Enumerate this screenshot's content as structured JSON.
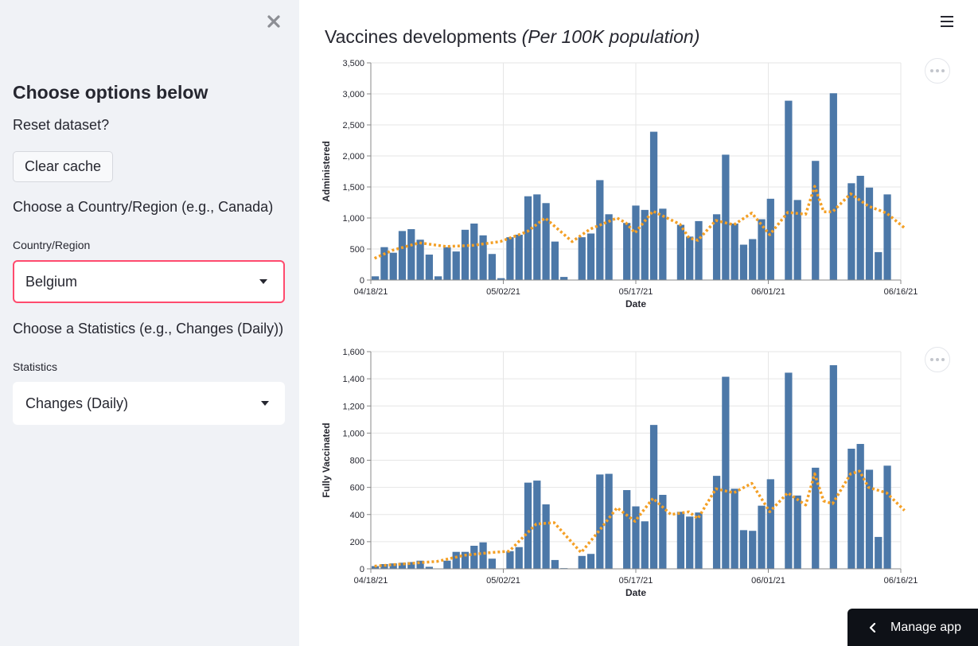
{
  "sidebar": {
    "heading": "Choose options below",
    "reset_text": "Reset dataset?",
    "clear_cache_label": "Clear cache",
    "country_prompt": "Choose a Country/Region (e.g., Canada)",
    "country_label": "Country/Region",
    "country_value": "Belgium",
    "stat_prompt": "Choose a Statistics (e.g., Changes (Daily))",
    "stat_label": "Statistics",
    "stat_value": "Changes (Daily)"
  },
  "main": {
    "title": "Vaccines developments",
    "title_sub": "(Per 100K population)",
    "manage_app_label": "Manage app"
  },
  "colors": {
    "bar": "#4c78a8",
    "avg_line": "#f4a026",
    "focus_border": "#ff4b6e",
    "sidebar_bg": "#f0f2f6"
  },
  "chart_data": [
    {
      "type": "bar",
      "xlabel": "Date",
      "ylabel": "Administered",
      "ylim": [
        0,
        3500
      ],
      "yticks": [
        0,
        500,
        1000,
        1500,
        2000,
        2500,
        3000,
        3500
      ],
      "ytick_labels": [
        "0",
        "500",
        "1,000",
        "1,500",
        "2,000",
        "2,500",
        "3,000",
        "3,500"
      ],
      "xlim": [
        "2021-04-18",
        "2021-06-16"
      ],
      "xticks": [
        "04/18/21",
        "05/02/21",
        "05/17/21",
        "06/01/21",
        "06/16/21"
      ],
      "grid": true,
      "series": [
        {
          "values": [
            [
              "2021-04-18",
              60
            ],
            [
              "2021-04-19",
              530
            ],
            [
              "2021-04-20",
              440
            ],
            [
              "2021-04-21",
              790
            ],
            [
              "2021-04-22",
              820
            ],
            [
              "2021-04-23",
              650
            ],
            [
              "2021-04-24",
              410
            ],
            [
              "2021-04-25",
              60
            ],
            [
              "2021-04-26",
              530
            ],
            [
              "2021-04-27",
              460
            ],
            [
              "2021-04-28",
              810
            ],
            [
              "2021-04-29",
              910
            ],
            [
              "2021-04-30",
              720
            ],
            [
              "2021-05-01",
              420
            ],
            [
              "2021-05-02",
              30
            ],
            [
              "2021-05-03",
              690
            ],
            [
              "2021-05-04",
              730
            ],
            [
              "2021-05-05",
              1350
            ],
            [
              "2021-05-06",
              1380
            ],
            [
              "2021-05-07",
              1240
            ],
            [
              "2021-05-08",
              620
            ],
            [
              "2021-05-09",
              50
            ],
            [
              "2021-05-11",
              690
            ],
            [
              "2021-05-12",
              750
            ],
            [
              "2021-05-13",
              1610
            ],
            [
              "2021-05-14",
              1060
            ],
            [
              "2021-05-16",
              920
            ],
            [
              "2021-05-17",
              1200
            ],
            [
              "2021-05-18",
              1130
            ],
            [
              "2021-05-19",
              2390
            ],
            [
              "2021-05-20",
              1150
            ],
            [
              "2021-05-22",
              890
            ],
            [
              "2021-05-23",
              700
            ],
            [
              "2021-05-24",
              950
            ],
            [
              "2021-05-26",
              1060
            ],
            [
              "2021-05-27",
              2020
            ],
            [
              "2021-05-28",
              910
            ],
            [
              "2021-05-29",
              570
            ],
            [
              "2021-05-30",
              660
            ],
            [
              "2021-05-31",
              980
            ],
            [
              "2021-06-01",
              1310
            ],
            [
              "2021-06-03",
              2890
            ],
            [
              "2021-06-04",
              1290
            ],
            [
              "2021-06-06",
              1920
            ],
            [
              "2021-06-08",
              3010
            ],
            [
              "2021-06-10",
              1560
            ],
            [
              "2021-06-11",
              1680
            ],
            [
              "2021-06-12",
              1490
            ],
            [
              "2021-06-13",
              450
            ],
            [
              "2021-06-14",
              1380
            ]
          ]
        },
        {
          "type": "line",
          "style": "dotted",
          "values": [
            [
              "2021-04-18",
              350
            ],
            [
              "2021-04-20",
              480
            ],
            [
              "2021-04-23",
              600
            ],
            [
              "2021-04-26",
              540
            ],
            [
              "2021-04-29",
              560
            ],
            [
              "2021-05-02",
              620
            ],
            [
              "2021-05-05",
              780
            ],
            [
              "2021-05-07",
              1000
            ],
            [
              "2021-05-10",
              620
            ],
            [
              "2021-05-12",
              820
            ],
            [
              "2021-05-15",
              1000
            ],
            [
              "2021-05-16",
              920
            ],
            [
              "2021-05-17",
              760
            ],
            [
              "2021-05-19",
              1110
            ],
            [
              "2021-05-22",
              900
            ],
            [
              "2021-05-23",
              680
            ],
            [
              "2021-05-24",
              640
            ],
            [
              "2021-05-26",
              960
            ],
            [
              "2021-05-28",
              890
            ],
            [
              "2021-05-30",
              1080
            ],
            [
              "2021-06-01",
              730
            ],
            [
              "2021-06-03",
              1090
            ],
            [
              "2021-06-05",
              1060
            ],
            [
              "2021-06-06",
              1510
            ],
            [
              "2021-06-07",
              1100
            ],
            [
              "2021-06-08",
              1100
            ],
            [
              "2021-06-10",
              1390
            ],
            [
              "2021-06-12",
              1190
            ],
            [
              "2021-06-14",
              1080
            ],
            [
              "2021-06-16",
              840
            ]
          ]
        }
      ]
    },
    {
      "type": "bar",
      "xlabel": "Date",
      "ylabel": "Fully Vaccinated",
      "ylim": [
        0,
        1600
      ],
      "yticks": [
        0,
        200,
        400,
        600,
        800,
        1000,
        1200,
        1400,
        1600
      ],
      "ytick_labels": [
        "0",
        "200",
        "400",
        "600",
        "800",
        "1,000",
        "1,200",
        "1,400",
        "1,600"
      ],
      "xlim": [
        "2021-04-18",
        "2021-06-16"
      ],
      "xticks": [
        "04/18/21",
        "05/02/21",
        "05/17/21",
        "06/01/21",
        "06/16/21"
      ],
      "grid": true,
      "series": [
        {
          "values": [
            [
              "2021-04-18",
              20
            ],
            [
              "2021-04-19",
              35
            ],
            [
              "2021-04-20",
              40
            ],
            [
              "2021-04-21",
              45
            ],
            [
              "2021-04-22",
              50
            ],
            [
              "2021-04-23",
              60
            ],
            [
              "2021-04-24",
              15
            ],
            [
              "2021-04-26",
              60
            ],
            [
              "2021-04-27",
              125
            ],
            [
              "2021-04-28",
              125
            ],
            [
              "2021-04-29",
              170
            ],
            [
              "2021-04-30",
              195
            ],
            [
              "2021-05-01",
              75
            ],
            [
              "2021-05-03",
              130
            ],
            [
              "2021-05-04",
              160
            ],
            [
              "2021-05-05",
              635
            ],
            [
              "2021-05-06",
              650
            ],
            [
              "2021-05-07",
              475
            ],
            [
              "2021-05-08",
              65
            ],
            [
              "2021-05-09",
              5
            ],
            [
              "2021-05-11",
              95
            ],
            [
              "2021-05-12",
              110
            ],
            [
              "2021-05-13",
              695
            ],
            [
              "2021-05-14",
              700
            ],
            [
              "2021-05-16",
              580
            ],
            [
              "2021-05-17",
              460
            ],
            [
              "2021-05-18",
              350
            ],
            [
              "2021-05-19",
              1060
            ],
            [
              "2021-05-20",
              545
            ],
            [
              "2021-05-22",
              420
            ],
            [
              "2021-05-23",
              385
            ],
            [
              "2021-05-24",
              415
            ],
            [
              "2021-05-26",
              685
            ],
            [
              "2021-05-27",
              1415
            ],
            [
              "2021-05-28",
              590
            ],
            [
              "2021-05-29",
              285
            ],
            [
              "2021-05-30",
              280
            ],
            [
              "2021-05-31",
              465
            ],
            [
              "2021-06-01",
              660
            ],
            [
              "2021-06-03",
              1445
            ],
            [
              "2021-06-04",
              540
            ],
            [
              "2021-06-06",
              745
            ],
            [
              "2021-06-08",
              1500
            ],
            [
              "2021-06-10",
              885
            ],
            [
              "2021-06-11",
              920
            ],
            [
              "2021-06-12",
              730
            ],
            [
              "2021-06-13",
              235
            ],
            [
              "2021-06-14",
              760
            ]
          ]
        },
        {
          "type": "line",
          "style": "dotted",
          "values": [
            [
              "2021-04-18",
              20
            ],
            [
              "2021-04-22",
              40
            ],
            [
              "2021-04-25",
              55
            ],
            [
              "2021-04-28",
              100
            ],
            [
              "2021-05-01",
              120
            ],
            [
              "2021-05-03",
              130
            ],
            [
              "2021-05-06",
              330
            ],
            [
              "2021-05-08",
              340
            ],
            [
              "2021-05-11",
              120
            ],
            [
              "2021-05-13",
              280
            ],
            [
              "2021-05-15",
              450
            ],
            [
              "2021-05-17",
              350
            ],
            [
              "2021-05-19",
              520
            ],
            [
              "2021-05-21",
              400
            ],
            [
              "2021-05-23",
              420
            ],
            [
              "2021-05-24",
              370
            ],
            [
              "2021-05-26",
              590
            ],
            [
              "2021-05-28",
              560
            ],
            [
              "2021-05-30",
              630
            ],
            [
              "2021-06-01",
              420
            ],
            [
              "2021-06-03",
              560
            ],
            [
              "2021-06-05",
              470
            ],
            [
              "2021-06-06",
              700
            ],
            [
              "2021-06-07",
              500
            ],
            [
              "2021-06-08",
              480
            ],
            [
              "2021-06-10",
              700
            ],
            [
              "2021-06-11",
              720
            ],
            [
              "2021-06-12",
              600
            ],
            [
              "2021-06-14",
              560
            ],
            [
              "2021-06-16",
              430
            ]
          ]
        }
      ]
    }
  ]
}
